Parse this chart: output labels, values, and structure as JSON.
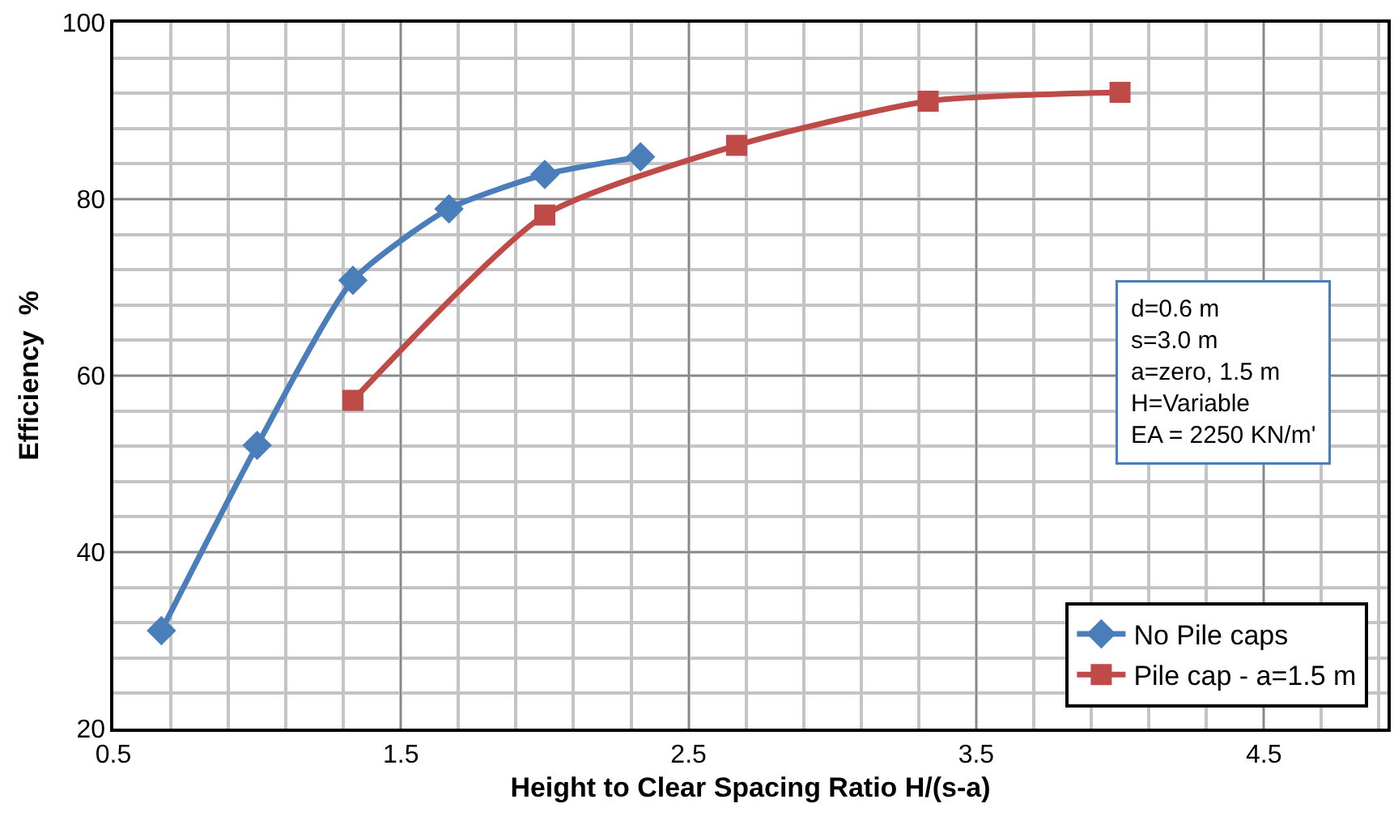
{
  "chart_data": {
    "type": "line",
    "xlabel": "Height to Clear Spacing Ratio H/(s-a)",
    "ylabel": "Efficiency  %",
    "xlim": [
      0.5,
      4.93
    ],
    "xticks": [
      0.5,
      1.5,
      2.5,
      3.5,
      4.5
    ],
    "ylim": [
      20,
      100
    ],
    "yticks": [
      20,
      40,
      60,
      80,
      100
    ],
    "grid": true,
    "legend": "bottom right",
    "line_style": "solid",
    "series": [
      {
        "name": "No Pile caps",
        "color": "#4a7ebb",
        "marker": "diamond",
        "x": [
          0.667,
          1.0,
          1.333,
          1.667,
          2.0,
          2.333
        ],
        "values": [
          31.1,
          52.1,
          70.8,
          78.9,
          82.8,
          84.8
        ]
      },
      {
        "name": "Pile cap - a=1.5 m",
        "color": "#be4b48",
        "marker": "square",
        "x": [
          1.333,
          2.0,
          2.667,
          3.333,
          4.0
        ],
        "values": [
          57.2,
          78.2,
          86.1,
          91.1,
          92.1
        ]
      }
    ],
    "annotations": [
      "d=0.6 m\ns=3.0 m\na=zero, 1.5 m\nH=Variable\nEA = 2250 KN/m'"
    ]
  }
}
